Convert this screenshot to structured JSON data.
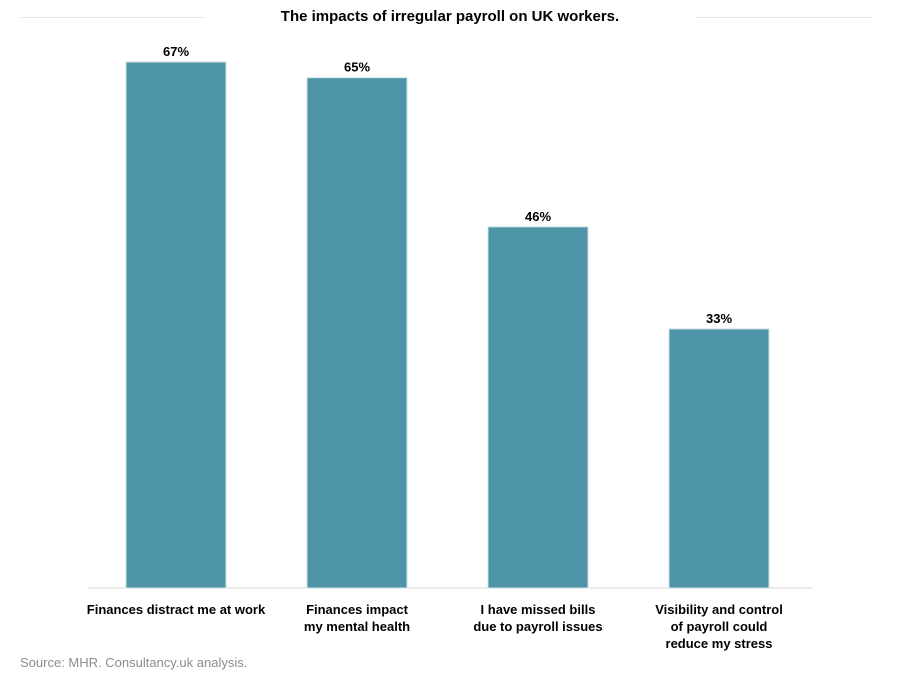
{
  "chart_data": {
    "type": "bar",
    "title": "The impacts of irregular payroll on UK workers.",
    "categories": [
      [
        "Finances distract me at work"
      ],
      [
        "Finances impact",
        "my mental health"
      ],
      [
        "I have missed bills",
        "due to payroll issues"
      ],
      [
        "Visibility and control",
        "of payroll could",
        "reduce my stress"
      ]
    ],
    "values": [
      67,
      65,
      46,
      33
    ],
    "data_labels": [
      "67%",
      "65%",
      "46%",
      "33%"
    ],
    "unit": "%",
    "ylim": [
      0,
      67
    ],
    "bar_color": "#4e96a7",
    "grid": false,
    "xlabel": "",
    "ylabel": ""
  },
  "source": "Source: MHR. Consultancy.uk analysis."
}
